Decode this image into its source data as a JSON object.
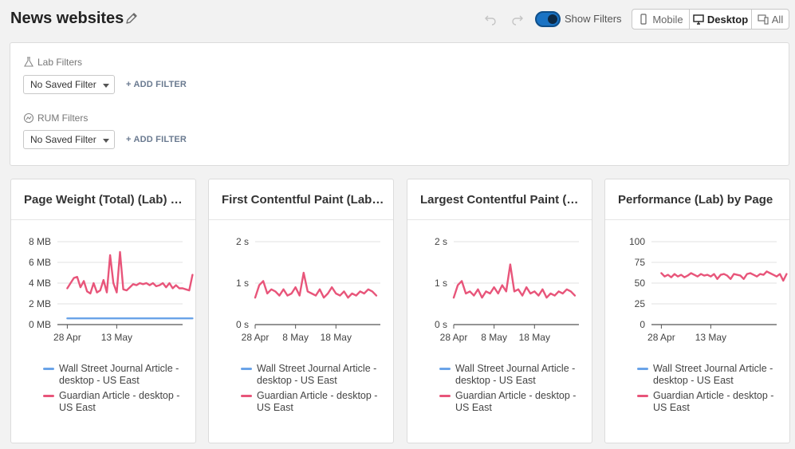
{
  "header": {
    "title": "News websites",
    "show_filters_label": "Show Filters",
    "views": [
      {
        "label": "Mobile",
        "icon": "mobile-icon",
        "active": false
      },
      {
        "label": "Desktop",
        "icon": "desktop-icon",
        "active": true
      },
      {
        "label": "All",
        "icon": "all-devices-icon",
        "active": false
      }
    ]
  },
  "filters": {
    "lab": {
      "heading": "Lab Filters",
      "icon": "flask-icon",
      "select_value": "No Saved Filter",
      "add_label": "+ ADD FILTER"
    },
    "rum": {
      "heading": "RUM Filters",
      "icon": "gauge-icon",
      "select_value": "No Saved Filter",
      "add_label": "+ ADD FILTER"
    }
  },
  "colors": {
    "series_blue": "#6aa3e8",
    "series_red": "#e8557a",
    "accent": "#1a73c4"
  },
  "legend": [
    {
      "label": "Wall Street Journal Article - desktop - US East",
      "color": "#6aa3e8"
    },
    {
      "label": "Guardian Article - desktop - US East",
      "color": "#e8557a"
    }
  ],
  "cards": [
    {
      "title": "Page Weight (Total) (Lab) by Page"
    },
    {
      "title": "First Contentful Paint (Lab) by Page"
    },
    {
      "title": "Largest Contentful Paint (Lab) by Page"
    },
    {
      "title": "Performance (Lab) by Page"
    }
  ],
  "chart_data": [
    {
      "type": "line",
      "title": "Page Weight (Total) (Lab) by Page",
      "y_ticks": [
        "0 MB",
        "2 MB",
        "4 MB",
        "6 MB",
        "8 MB"
      ],
      "ylim": [
        0,
        8
      ],
      "x_ticks": [
        {
          "label": "28 Apr",
          "t": 0
        },
        {
          "label": "13 May",
          "t": 15
        }
      ],
      "xlim": [
        -3,
        35
      ],
      "series": [
        {
          "name": "Wall Street Journal Article - desktop - US East",
          "color": "#6aa3e8",
          "values": [
            0.6,
            0.6,
            0.6,
            0.6,
            0.6,
            0.6,
            0.6,
            0.6,
            0.6,
            0.6,
            0.6,
            0.6,
            0.6,
            0.6,
            0.6,
            0.6,
            0.6,
            0.6,
            0.6,
            0.6,
            0.6,
            0.6,
            0.6,
            0.6,
            0.6,
            0.6,
            0.6,
            0.6,
            0.6,
            0.6,
            0.6,
            0.6,
            0.6,
            0.6,
            0.6,
            0.6,
            0.6,
            0.6,
            0.6
          ]
        },
        {
          "name": "Guardian Article - desktop - US East",
          "color": "#e8557a",
          "values": [
            3.5,
            4.0,
            4.5,
            4.6,
            3.6,
            4.2,
            3.2,
            3.0,
            4.0,
            3.1,
            3.3,
            4.3,
            3.1,
            6.7,
            4.0,
            3.1,
            7.0,
            3.4,
            3.3,
            3.6,
            3.9,
            3.8,
            4.0,
            3.9,
            4.0,
            3.8,
            4.0,
            3.7,
            3.8,
            4.0,
            3.6,
            4.0,
            3.5,
            3.8,
            3.5,
            3.5,
            3.4,
            3.3,
            4.8
          ]
        }
      ]
    },
    {
      "type": "line",
      "title": "First Contentful Paint (Lab) by Page",
      "y_ticks": [
        "0 s",
        "1 s",
        "2 s"
      ],
      "ylim": [
        0,
        2
      ],
      "x_ticks": [
        {
          "label": "28 Apr",
          "t": 0
        },
        {
          "label": "8 May",
          "t": 10
        },
        {
          "label": "18 May",
          "t": 20
        }
      ],
      "xlim": [
        0,
        31
      ],
      "series": [
        {
          "name": "Wall Street Journal Article - desktop - US East",
          "color": "#6aa3e8",
          "values": []
        },
        {
          "name": "Guardian Article - desktop - US East",
          "color": "#e8557a",
          "values": [
            0.65,
            0.95,
            1.05,
            0.75,
            0.85,
            0.8,
            0.7,
            0.85,
            0.7,
            0.75,
            0.9,
            0.7,
            1.25,
            0.8,
            0.75,
            0.7,
            0.85,
            0.65,
            0.75,
            0.9,
            0.75,
            0.7,
            0.8,
            0.65,
            0.75,
            0.7,
            0.8,
            0.75,
            0.85,
            0.8,
            0.7
          ]
        }
      ]
    },
    {
      "type": "line",
      "title": "Largest Contentful Paint (Lab) by Page",
      "y_ticks": [
        "0 s",
        "1 s",
        "2 s"
      ],
      "ylim": [
        0,
        2
      ],
      "x_ticks": [
        {
          "label": "28 Apr",
          "t": 0
        },
        {
          "label": "8 May",
          "t": 10
        },
        {
          "label": "18 May",
          "t": 20
        }
      ],
      "xlim": [
        0,
        31
      ],
      "series": [
        {
          "name": "Wall Street Journal Article - desktop - US East",
          "color": "#6aa3e8",
          "values": []
        },
        {
          "name": "Guardian Article - desktop - US East",
          "color": "#e8557a",
          "values": [
            0.65,
            0.95,
            1.05,
            0.75,
            0.8,
            0.7,
            0.85,
            0.65,
            0.8,
            0.75,
            0.9,
            0.75,
            0.95,
            0.8,
            1.45,
            0.8,
            0.85,
            0.7,
            0.9,
            0.75,
            0.8,
            0.7,
            0.85,
            0.65,
            0.75,
            0.7,
            0.8,
            0.75,
            0.85,
            0.8,
            0.7
          ]
        }
      ]
    },
    {
      "type": "line",
      "title": "Performance (Lab) by Page",
      "y_ticks": [
        "0",
        "25",
        "50",
        "75",
        "100"
      ],
      "ylim": [
        0,
        100
      ],
      "x_ticks": [
        {
          "label": "28 Apr",
          "t": 0
        },
        {
          "label": "13 May",
          "t": 15
        }
      ],
      "xlim": [
        -3,
        35
      ],
      "series": [
        {
          "name": "Wall Street Journal Article - desktop - US East",
          "color": "#6aa3e8",
          "values": []
        },
        {
          "name": "Guardian Article - desktop - US East",
          "color": "#e8557a",
          "values": [
            62,
            58,
            60,
            57,
            61,
            58,
            60,
            57,
            59,
            62,
            60,
            58,
            61,
            59,
            60,
            58,
            61,
            55,
            60,
            61,
            59,
            55,
            61,
            60,
            59,
            55,
            61,
            62,
            60,
            58,
            61,
            60,
            64,
            62,
            60,
            58,
            61,
            53,
            61
          ]
        }
      ]
    }
  ]
}
